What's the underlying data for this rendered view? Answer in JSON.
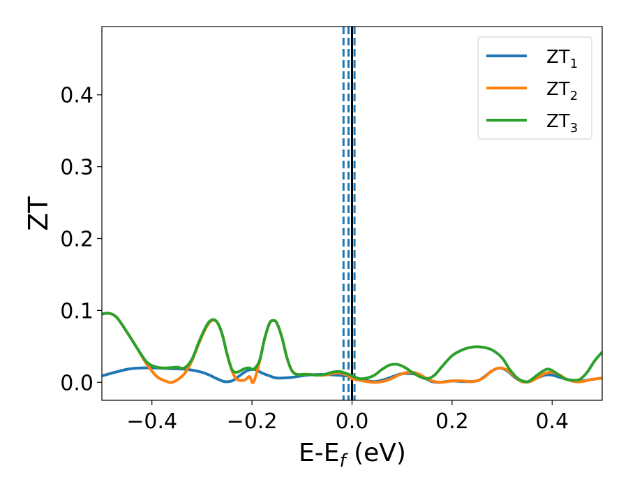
{
  "chart_data": {
    "type": "line",
    "xlabel": "E-E",
    "xlabel_sub": "f",
    "xlabel_unit": " (eV)",
    "ylabel": "ZT",
    "xlim": [
      -0.5,
      0.5
    ],
    "ylim": [
      -0.025,
      0.495
    ],
    "xticks": [
      -0.4,
      -0.2,
      0.0,
      0.2,
      0.4
    ],
    "xtick_labels": [
      "−0.4",
      "−0.2",
      "0.0",
      "0.2",
      "0.4"
    ],
    "yticks": [
      0.0,
      0.1,
      0.2,
      0.3,
      0.4
    ],
    "ytick_labels": [
      "0.0",
      "0.1",
      "0.2",
      "0.3",
      "0.4"
    ],
    "grid": false,
    "legend_position": "top-right",
    "vertical_lines": [
      {
        "x": -0.017,
        "style": "dashed",
        "color": "#1f77b4"
      },
      {
        "x": -0.007,
        "style": "dashed",
        "color": "#1f77b4"
      },
      {
        "x": 0.005,
        "style": "dashed",
        "color": "#1f77b4"
      },
      {
        "x": 0.0,
        "style": "solid",
        "color": "#000000"
      }
    ],
    "series": [
      {
        "name": "ZT",
        "sub": "1",
        "color": "#1f77b4",
        "x": [
          -0.5,
          -0.45,
          -0.42,
          -0.39,
          -0.36,
          -0.33,
          -0.3,
          -0.285,
          -0.27,
          -0.255,
          -0.24,
          -0.225,
          -0.21,
          -0.195,
          -0.18,
          -0.165,
          -0.15,
          -0.12,
          -0.09,
          -0.06,
          -0.03,
          0.0,
          0.02,
          0.045,
          0.07,
          0.1,
          0.13,
          0.145,
          0.16,
          0.175,
          0.2,
          0.225,
          0.25,
          0.265,
          0.28,
          0.295,
          0.31,
          0.325,
          0.34,
          0.355,
          0.37,
          0.385,
          0.4,
          0.415,
          0.43,
          0.445,
          0.46,
          0.48,
          0.5
        ],
        "y": [
          0.009,
          0.018,
          0.02,
          0.02,
          0.019,
          0.018,
          0.014,
          0.01,
          0.005,
          0.001,
          0.002,
          0.009,
          0.016,
          0.018,
          0.013,
          0.009,
          0.006,
          0.007,
          0.01,
          0.011,
          0.01,
          0.008,
          0.004,
          0.001,
          0.005,
          0.012,
          0.011,
          0.006,
          0.001,
          0.0,
          0.002,
          0.001,
          0.002,
          0.008,
          0.016,
          0.02,
          0.016,
          0.007,
          0.001,
          0.001,
          0.006,
          0.01,
          0.01,
          0.007,
          0.004,
          0.002,
          0.002,
          0.004,
          0.006
        ]
      },
      {
        "name": "ZT",
        "sub": "2",
        "color": "#ff7f0e",
        "x": [
          -0.5,
          -0.485,
          -0.47,
          -0.45,
          -0.43,
          -0.41,
          -0.39,
          -0.37,
          -0.36,
          -0.35,
          -0.335,
          -0.32,
          -0.305,
          -0.29,
          -0.28,
          -0.27,
          -0.26,
          -0.25,
          -0.24,
          -0.23,
          -0.215,
          -0.205,
          -0.197,
          -0.185,
          -0.175,
          -0.165,
          -0.157,
          -0.15,
          -0.14,
          -0.13,
          -0.12,
          -0.11,
          -0.1,
          -0.085,
          -0.07,
          -0.055,
          -0.04,
          -0.025,
          -0.01,
          0.0,
          0.015,
          0.03,
          0.045,
          0.06,
          0.075,
          0.09,
          0.105,
          0.12,
          0.135,
          0.15,
          0.165,
          0.18,
          0.2,
          0.22,
          0.24,
          0.26,
          0.28,
          0.295,
          0.31,
          0.325,
          0.34,
          0.355,
          0.37,
          0.385,
          0.4,
          0.415,
          0.43,
          0.445,
          0.46,
          0.48,
          0.5
        ],
        "y": [
          0.095,
          0.096,
          0.09,
          0.07,
          0.048,
          0.025,
          0.008,
          0.001,
          0.0,
          0.003,
          0.012,
          0.03,
          0.056,
          0.078,
          0.086,
          0.084,
          0.068,
          0.04,
          0.016,
          0.004,
          0.003,
          0.008,
          0.0,
          0.028,
          0.06,
          0.082,
          0.086,
          0.082,
          0.062,
          0.034,
          0.016,
          0.011,
          0.011,
          0.011,
          0.01,
          0.01,
          0.012,
          0.013,
          0.01,
          0.005,
          0.003,
          0.001,
          0.0,
          0.001,
          0.004,
          0.009,
          0.013,
          0.014,
          0.011,
          0.005,
          0.001,
          0.0,
          0.002,
          0.002,
          0.001,
          0.005,
          0.016,
          0.02,
          0.017,
          0.008,
          0.001,
          0.001,
          0.006,
          0.012,
          0.014,
          0.01,
          0.004,
          0.001,
          0.001,
          0.004,
          0.006
        ]
      },
      {
        "name": "ZT",
        "sub": "3",
        "color": "#2ca02c",
        "x": [
          -0.5,
          -0.485,
          -0.47,
          -0.45,
          -0.43,
          -0.41,
          -0.39,
          -0.37,
          -0.35,
          -0.335,
          -0.32,
          -0.305,
          -0.29,
          -0.28,
          -0.27,
          -0.26,
          -0.25,
          -0.24,
          -0.23,
          -0.215,
          -0.205,
          -0.197,
          -0.185,
          -0.175,
          -0.165,
          -0.157,
          -0.15,
          -0.14,
          -0.13,
          -0.12,
          -0.11,
          -0.1,
          -0.085,
          -0.07,
          -0.055,
          -0.04,
          -0.025,
          -0.01,
          0.0,
          0.015,
          0.03,
          0.045,
          0.06,
          0.075,
          0.09,
          0.105,
          0.12,
          0.135,
          0.15,
          0.165,
          0.18,
          0.2,
          0.22,
          0.24,
          0.26,
          0.28,
          0.3,
          0.315,
          0.33,
          0.345,
          0.355,
          0.37,
          0.385,
          0.395,
          0.41,
          0.425,
          0.44,
          0.455,
          0.47,
          0.485,
          0.5
        ],
        "y": [
          0.095,
          0.096,
          0.09,
          0.07,
          0.048,
          0.028,
          0.021,
          0.02,
          0.021,
          0.02,
          0.032,
          0.058,
          0.08,
          0.087,
          0.084,
          0.068,
          0.04,
          0.018,
          0.014,
          0.019,
          0.02,
          0.018,
          0.03,
          0.06,
          0.082,
          0.086,
          0.082,
          0.062,
          0.034,
          0.016,
          0.011,
          0.011,
          0.011,
          0.01,
          0.011,
          0.014,
          0.015,
          0.012,
          0.009,
          0.005,
          0.006,
          0.01,
          0.018,
          0.024,
          0.025,
          0.021,
          0.014,
          0.008,
          0.005,
          0.01,
          0.022,
          0.037,
          0.045,
          0.049,
          0.049,
          0.045,
          0.034,
          0.018,
          0.006,
          0.001,
          0.002,
          0.01,
          0.017,
          0.018,
          0.012,
          0.005,
          0.003,
          0.004,
          0.014,
          0.03,
          0.042
        ]
      }
    ]
  }
}
